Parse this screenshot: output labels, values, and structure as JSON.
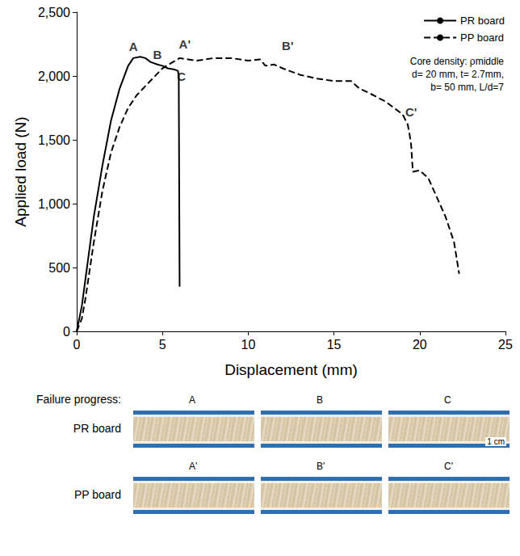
{
  "chart_data": {
    "type": "line",
    "x_label": "Displacement (mm)",
    "y_label": "Applied load (N)",
    "xlim": [
      0,
      25
    ],
    "xticks": [
      0,
      5,
      10,
      15,
      20,
      25
    ],
    "ylim": [
      0,
      2500
    ],
    "yticks": [
      0,
      500,
      1000,
      1500,
      2000,
      2500
    ],
    "grid": false,
    "legend": "upper right",
    "series": [
      {
        "name": "PR board",
        "color": "#000000",
        "line_style": "solid",
        "x": [
          0,
          0.3,
          0.7,
          1,
          1.5,
          2,
          2.5,
          3,
          3.3,
          3.7,
          4,
          4.3,
          4.7,
          5,
          5.3,
          5.7,
          5.9,
          5.95,
          6
        ],
        "values": [
          0,
          200,
          600,
          900,
          1300,
          1650,
          1900,
          2080,
          2140,
          2150,
          2140,
          2110,
          2090,
          2080,
          2060,
          2050,
          2040,
          2000,
          350
        ]
      },
      {
        "name": "PP board",
        "color": "#000000",
        "line_style": "dashed",
        "x": [
          0,
          0.3,
          0.5,
          1,
          1.5,
          2,
          2.5,
          3,
          3.5,
          4,
          4.5,
          5,
          5.5,
          6,
          6.5,
          7,
          8,
          9,
          10,
          10.7,
          11,
          11.5,
          12,
          13,
          14,
          15,
          16,
          16.5,
          17,
          18,
          19,
          19.3,
          19.4,
          19.5,
          19.6,
          20,
          20.5,
          21,
          21.5,
          22,
          22.3
        ],
        "values": [
          0,
          100,
          250,
          700,
          1100,
          1400,
          1600,
          1750,
          1850,
          1920,
          1990,
          2060,
          2100,
          2140,
          2130,
          2120,
          2140,
          2140,
          2120,
          2130,
          2080,
          2090,
          2060,
          2010,
          1980,
          1960,
          1960,
          1900,
          1870,
          1800,
          1700,
          1620,
          1550,
          1460,
          1250,
          1260,
          1200,
          1050,
          900,
          700,
          450
        ]
      }
    ],
    "annotations": [
      {
        "text": "A",
        "x": 3.3,
        "y": 2230
      },
      {
        "text": "B",
        "x": 4.7,
        "y": 2170
      },
      {
        "text": "C",
        "x": 6.1,
        "y": 2000
      },
      {
        "text": "A'",
        "x": 6.3,
        "y": 2250
      },
      {
        "text": "B'",
        "x": 12.3,
        "y": 2240
      },
      {
        "text": "C'",
        "x": 19.5,
        "y": 1720
      }
    ],
    "info_text": [
      "Core density: ρmiddle",
      "d= 20 mm, t= 2.7mm,",
      "b= 50 mm, L/d=7"
    ],
    "failure_progress": {
      "title": "Failure progress:",
      "rows": [
        {
          "label": "PR board",
          "panels": [
            "A",
            "B",
            "C"
          ]
        },
        {
          "label": "PP board",
          "panels": [
            "A'",
            "B'",
            "C'"
          ]
        }
      ],
      "scale_bar": "1 cm"
    }
  }
}
